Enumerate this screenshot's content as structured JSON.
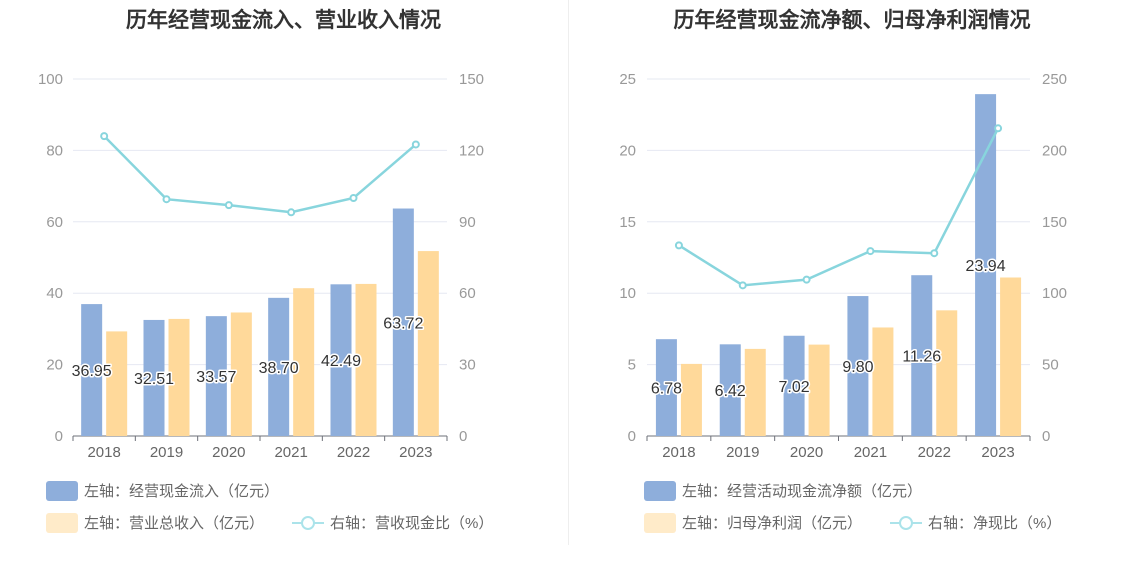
{
  "chart_data": [
    {
      "type": "bar+line",
      "title": "历年经营现金流入、营业收入情况",
      "categories": [
        "2018",
        "2019",
        "2020",
        "2021",
        "2022",
        "2023"
      ],
      "left_axis": {
        "ticks": [
          "0",
          "20",
          "40",
          "60",
          "80",
          "100"
        ],
        "ylim": [
          0,
          100
        ]
      },
      "right_axis": {
        "ticks": [
          "0",
          "30",
          "60",
          "90",
          "120",
          "150"
        ],
        "ylim": [
          0,
          150
        ]
      },
      "series": [
        {
          "name": "左轴：经营现金流入（亿元）",
          "type": "bar",
          "axis": "left",
          "color": "#8eaedb",
          "values": [
            36.95,
            32.51,
            33.57,
            38.7,
            42.49,
            63.72
          ],
          "labels": [
            "36.95",
            "32.51",
            "33.57",
            "38.70",
            "42.49",
            "63.72"
          ]
        },
        {
          "name": "左轴：营业总收入（亿元）",
          "type": "bar",
          "axis": "left",
          "color": "#ffd99a",
          "legend_color": "#ffebc9",
          "values": [
            29.3,
            32.8,
            34.6,
            41.4,
            42.6,
            51.8
          ]
        },
        {
          "name": "右轴：营收现金比（%）",
          "type": "line",
          "axis": "right",
          "color": "#88d5dd",
          "legend_color": "#abe3ea",
          "values": [
            126,
            99.5,
            97,
            94,
            100,
            122.5
          ]
        }
      ],
      "grid": true,
      "legend": "bottom-left"
    },
    {
      "type": "bar+line",
      "title": "历年经营现金流净额、归母净利润情况",
      "categories": [
        "2018",
        "2019",
        "2020",
        "2021",
        "2022",
        "2023"
      ],
      "left_axis": {
        "ticks": [
          "0",
          "5",
          "10",
          "15",
          "20",
          "25"
        ],
        "ylim": [
          0,
          25
        ]
      },
      "right_axis": {
        "ticks": [
          "0",
          "50",
          "100",
          "150",
          "200",
          "250"
        ],
        "ylim": [
          0,
          250
        ]
      },
      "series": [
        {
          "name": "左轴：经营活动现金流净额（亿元）",
          "type": "bar",
          "axis": "left",
          "color": "#8eaedb",
          "values": [
            6.78,
            6.42,
            7.02,
            9.8,
            11.26,
            23.94
          ],
          "labels": [
            "6.78",
            "6.42",
            "7.02",
            "9.80",
            "11.26",
            "23.94"
          ]
        },
        {
          "name": "左轴：归母净利润（亿元）",
          "type": "bar",
          "axis": "left",
          "color": "#ffd99a",
          "legend_color": "#ffebc9",
          "values": [
            5.05,
            6.1,
            6.4,
            7.6,
            8.8,
            11.1
          ]
        },
        {
          "name": "右轴：净现比（%）",
          "type": "line",
          "axis": "right",
          "color": "#88d5dd",
          "legend_color": "#abe3ea",
          "values": [
            133.5,
            105.5,
            109.5,
            129.5,
            128,
            215.5
          ]
        }
      ],
      "grid": true,
      "legend": "bottom-left"
    }
  ]
}
